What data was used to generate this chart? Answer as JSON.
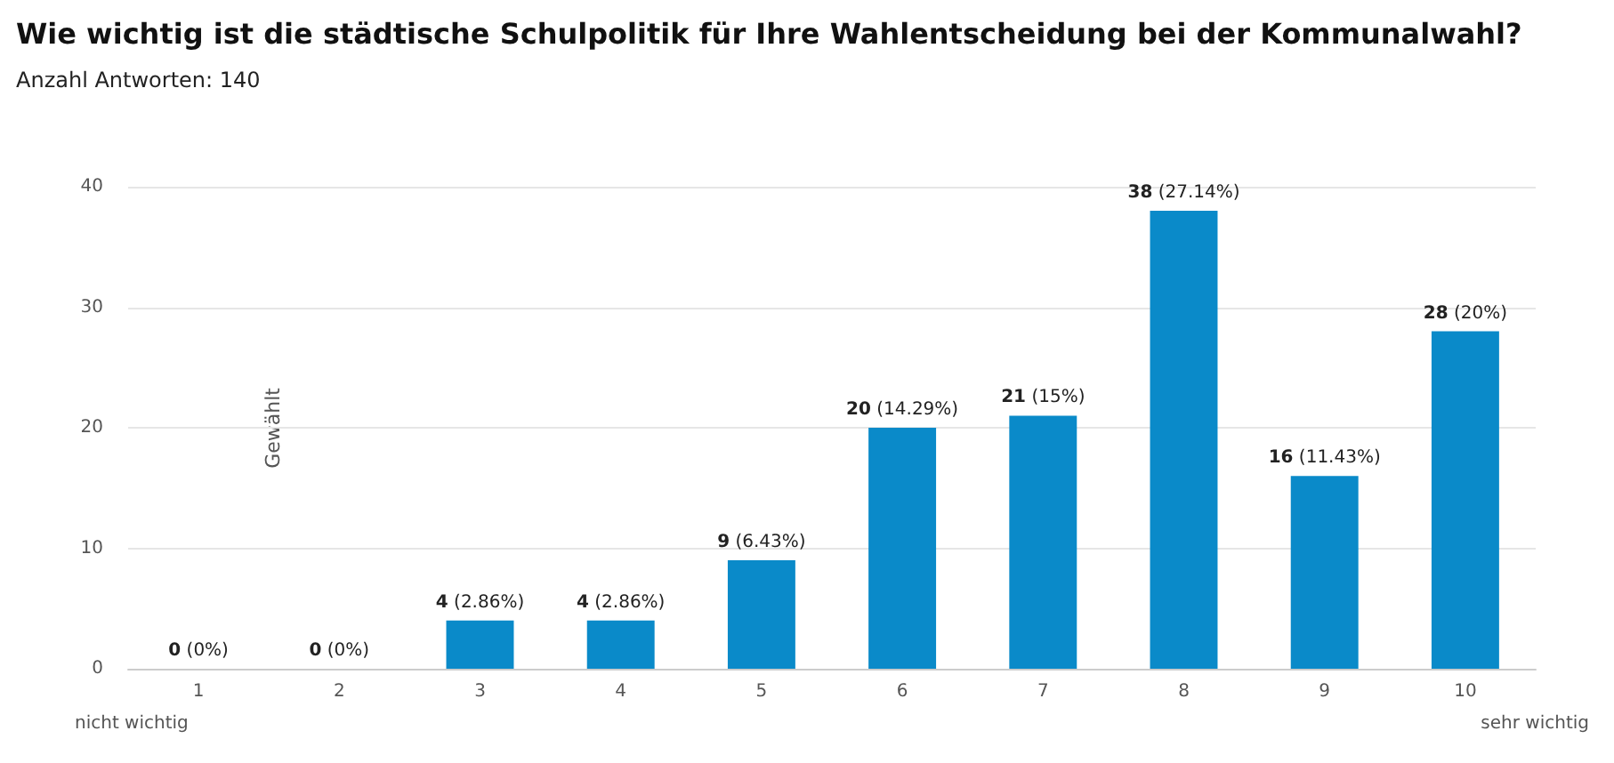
{
  "chart_data": {
    "type": "bar",
    "title": "Wie wichtig ist die städtische Schulpolitik für Ihre Wahlentscheidung bei der Kommunalwahl?",
    "subtitle": "Anzahl Antworten: 140",
    "ylabel": "Gewählt",
    "categories": [
      "1",
      "2",
      "3",
      "4",
      "5",
      "6",
      "7",
      "8",
      "9",
      "10"
    ],
    "values": [
      0,
      0,
      4,
      4,
      9,
      20,
      21,
      38,
      16,
      28
    ],
    "value_labels": [
      "0 (0%)",
      "0 (0%)",
      "4 (2.86%)",
      "4 (2.86%)",
      "9 (6.43%)",
      "20 (14.29%)",
      "21 (15%)",
      "38 (27.14%)",
      "16 (11.43%)",
      "28 (20%)"
    ],
    "color": "#0a8ac9",
    "ylim": [
      0,
      40
    ],
    "yticks": [
      0,
      10,
      20,
      30,
      40
    ],
    "grid": "y",
    "annotations": [
      "nicht wichtig",
      "sehr wichtig"
    ]
  }
}
